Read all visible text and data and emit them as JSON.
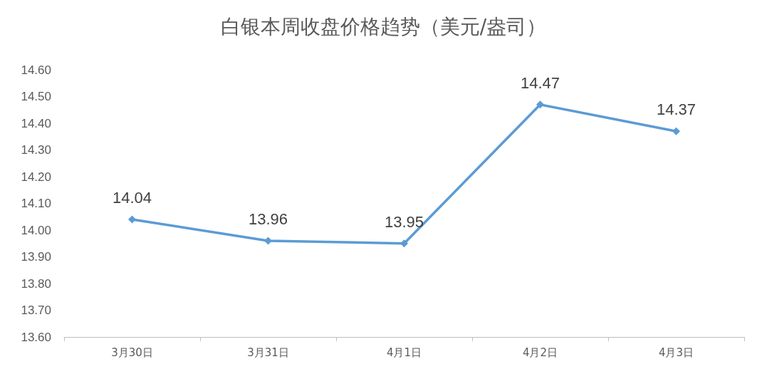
{
  "chart_data": {
    "type": "line",
    "title": "白银本周收盘价格趋势（美元/盎司）",
    "categories": [
      "3月30日",
      "3月31日",
      "4月1日",
      "4月2日",
      "4月3日"
    ],
    "series": [
      {
        "color": "#5b9bd5",
        "values": [
          14.04,
          13.96,
          13.95,
          14.47,
          14.37
        ]
      }
    ],
    "ylim": [
      13.6,
      14.6
    ],
    "yticks": [
      {
        "value": 13.6,
        "label": "13.60"
      },
      {
        "value": 13.7,
        "label": "13.70"
      },
      {
        "value": 13.8,
        "label": "13.80"
      },
      {
        "value": 13.9,
        "label": "13.90"
      },
      {
        "value": 14.0,
        "label": "14.00"
      },
      {
        "value": 14.1,
        "label": "14.10"
      },
      {
        "value": 14.2,
        "label": "14.20"
      },
      {
        "value": 14.3,
        "label": "14.30"
      },
      {
        "value": 14.4,
        "label": "14.40"
      },
      {
        "value": 14.5,
        "label": "14.50"
      },
      {
        "value": 14.6,
        "label": "14.60"
      }
    ],
    "data_labels": true,
    "marker": "diamond",
    "line_style": "solid",
    "grid": false
  }
}
